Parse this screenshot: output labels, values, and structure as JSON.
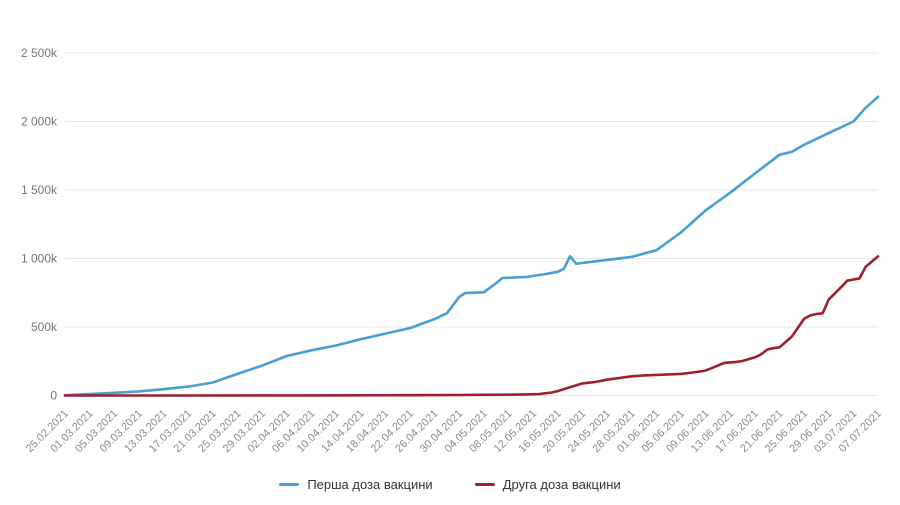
{
  "chart_data": {
    "type": "line",
    "title": "",
    "grid": "horizontal",
    "legend_position": "bottom-center",
    "colors": {
      "grid_line": "#e7e7e7",
      "axis_tick_label": "#8b8b8b",
      "y_tick_label": "#757575",
      "legend_text": "#333333",
      "background": "#ffffff"
    },
    "y_axis": {
      "unit": "thousands",
      "ylim_k": [
        0,
        2500
      ],
      "ticks": [
        {
          "value_k": 0,
          "label": "0"
        },
        {
          "value_k": 500,
          "label": "500k"
        },
        {
          "value_k": 1000,
          "label": "1 000k"
        },
        {
          "value_k": 1500,
          "label": "1 500k"
        },
        {
          "value_k": 2000,
          "label": "2 000k"
        },
        {
          "value_k": 2500,
          "label": "2 500k"
        }
      ]
    },
    "x_axis": {
      "unit": "days_since_first_label",
      "range_days": [
        0,
        132
      ],
      "tick_days": [
        0,
        4,
        8,
        12,
        16,
        20,
        24,
        28,
        32,
        36,
        40,
        44,
        48,
        52,
        56,
        60,
        64,
        68,
        72,
        76,
        80,
        84,
        88,
        92,
        96,
        100,
        104,
        108,
        112,
        116,
        120,
        124,
        128,
        132
      ],
      "tick_labels": [
        "25.02.2021",
        "01.03.2021",
        "05.03.2021",
        "09.03.2021",
        "13.03.2021",
        "17.03.2021",
        "21.03.2021",
        "25.03.2021",
        "29.03.2021",
        "02.04.2021",
        "06.04.2021",
        "10.04.2021",
        "14.04.2021",
        "18.04.2021",
        "22.04.2021",
        "26.04.2021",
        "30.04.2021",
        "04.05.2021",
        "08.05.2021",
        "12.05.2021",
        "16.05.2021",
        "20.05.2021",
        "24.05.2021",
        "28.05.2021",
        "01.06.2021",
        "05.06.2021",
        "09.06.2021",
        "13.06.2021",
        "17.06.2021",
        "21.06.2021",
        "25.06.2021",
        "29.06.2021",
        "03.07.2021",
        "07.07.2021"
      ]
    },
    "series": [
      {
        "name": "Перша доза вакцини",
        "color": "#46a0d2",
        "points_day_valuek": [
          [
            0,
            2
          ],
          [
            4,
            10
          ],
          [
            8,
            20
          ],
          [
            12,
            30
          ],
          [
            16,
            46
          ],
          [
            20,
            65
          ],
          [
            24,
            95
          ],
          [
            28,
            158
          ],
          [
            32,
            218
          ],
          [
            36,
            288
          ],
          [
            40,
            330
          ],
          [
            44,
            365
          ],
          [
            48,
            410
          ],
          [
            52,
            452
          ],
          [
            56,
            492
          ],
          [
            60,
            558
          ],
          [
            62,
            600
          ],
          [
            64,
            720
          ],
          [
            65,
            748
          ],
          [
            68,
            753
          ],
          [
            70,
            820
          ],
          [
            71,
            858
          ],
          [
            75,
            866
          ],
          [
            78,
            886
          ],
          [
            80,
            903
          ],
          [
            81,
            925
          ],
          [
            82,
            1015
          ],
          [
            83,
            962
          ],
          [
            84,
            968
          ],
          [
            88,
            990
          ],
          [
            92,
            1012
          ],
          [
            96,
            1060
          ],
          [
            100,
            1190
          ],
          [
            104,
            1350
          ],
          [
            108,
            1480
          ],
          [
            112,
            1620
          ],
          [
            116,
            1758
          ],
          [
            118,
            1778
          ],
          [
            120,
            1830
          ],
          [
            124,
            1915
          ],
          [
            128,
            2000
          ],
          [
            130,
            2100
          ],
          [
            132,
            2180
          ]
        ]
      },
      {
        "name": "Друга доза вакцини",
        "color": "#9e1f2e",
        "points_day_valuek": [
          [
            0,
            0
          ],
          [
            20,
            0
          ],
          [
            40,
            1
          ],
          [
            56,
            2
          ],
          [
            60,
            3
          ],
          [
            64,
            4
          ],
          [
            68,
            5
          ],
          [
            72,
            6
          ],
          [
            75,
            8
          ],
          [
            77,
            10
          ],
          [
            79,
            22
          ],
          [
            80,
            32
          ],
          [
            82,
            60
          ],
          [
            84,
            88
          ],
          [
            86,
            98
          ],
          [
            88,
            115
          ],
          [
            90,
            128
          ],
          [
            92,
            140
          ],
          [
            94,
            147
          ],
          [
            96,
            150
          ],
          [
            98,
            154
          ],
          [
            100,
            158
          ],
          [
            102,
            168
          ],
          [
            104,
            182
          ],
          [
            106,
            218
          ],
          [
            107,
            238
          ],
          [
            109,
            245
          ],
          [
            110,
            252
          ],
          [
            112,
            278
          ],
          [
            113,
            300
          ],
          [
            114,
            335
          ],
          [
            115,
            345
          ],
          [
            116,
            352
          ],
          [
            118,
            430
          ],
          [
            120,
            560
          ],
          [
            121,
            585
          ],
          [
            122,
            595
          ],
          [
            123,
            600
          ],
          [
            124,
            700
          ],
          [
            126,
            790
          ],
          [
            127,
            838
          ],
          [
            129,
            855
          ],
          [
            130,
            940
          ],
          [
            132,
            1015
          ]
        ]
      }
    ]
  }
}
